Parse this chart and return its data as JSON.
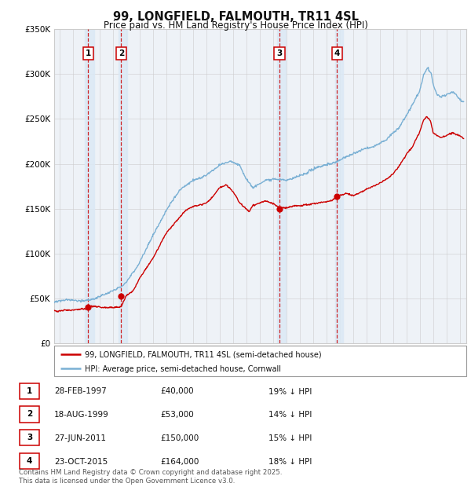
{
  "title": "99, LONGFIELD, FALMOUTH, TR11 4SL",
  "subtitle": "Price paid vs. HM Land Registry's House Price Index (HPI)",
  "ylim": [
    0,
    350000
  ],
  "yticks": [
    0,
    50000,
    100000,
    150000,
    200000,
    250000,
    300000,
    350000
  ],
  "ytick_labels": [
    "£0",
    "£50K",
    "£100K",
    "£150K",
    "£200K",
    "£250K",
    "£300K",
    "£350K"
  ],
  "sale_dates": [
    1997.16,
    1999.63,
    2011.49,
    2015.81
  ],
  "sale_prices": [
    40000,
    53000,
    150000,
    164000
  ],
  "sale_labels": [
    "1",
    "2",
    "3",
    "4"
  ],
  "legend_red": "99, LONGFIELD, FALMOUTH, TR11 4SL (semi-detached house)",
  "legend_blue": "HPI: Average price, semi-detached house, Cornwall",
  "table_rows": [
    [
      "1",
      "28-FEB-1997",
      "£40,000",
      "19% ↓ HPI"
    ],
    [
      "2",
      "18-AUG-1999",
      "£53,000",
      "14% ↓ HPI"
    ],
    [
      "3",
      "27-JUN-2011",
      "£150,000",
      "15% ↓ HPI"
    ],
    [
      "4",
      "23-OCT-2015",
      "£164,000",
      "18% ↓ HPI"
    ]
  ],
  "footer": "Contains HM Land Registry data © Crown copyright and database right 2025.\nThis data is licensed under the Open Government Licence v3.0.",
  "bg_color": "#ffffff",
  "plot_bg": "#eef2f7",
  "red_color": "#cc0000",
  "blue_color": "#7ab0d4",
  "grid_color": "#cccccc",
  "shade_color": "#dce9f5",
  "vertical_shading": [
    {
      "x_start": 1996.9,
      "x_end": 1997.6
    },
    {
      "x_start": 1999.45,
      "x_end": 2000.05
    },
    {
      "x_start": 2011.3,
      "x_end": 2011.95
    },
    {
      "x_start": 2015.65,
      "x_end": 2016.25
    }
  ],
  "xmin": 1994.6,
  "xmax": 2025.5
}
